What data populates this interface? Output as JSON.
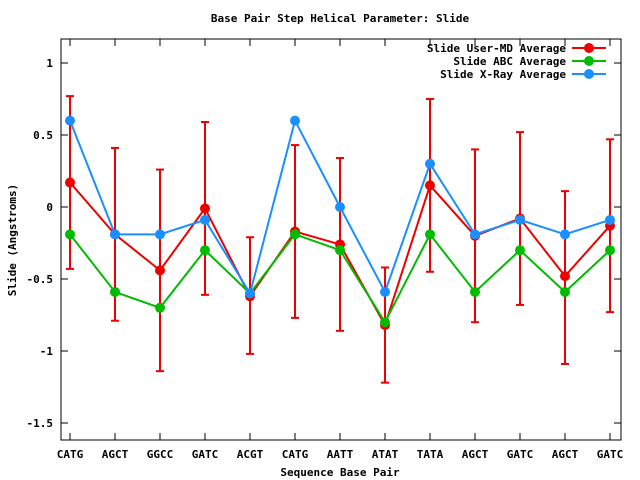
{
  "chart_data": {
    "type": "line",
    "title": "Base Pair Step Helical Parameter: Slide",
    "xlabel": "Sequence Base Pair",
    "ylabel": "Slide (Angstroms)",
    "categories": [
      "CATG",
      "AGCT",
      "GGCC",
      "GATC",
      "ACGT",
      "CATG",
      "AATT",
      "ATAT",
      "TATA",
      "AGCT",
      "GATC",
      "AGCT",
      "GATC"
    ],
    "ylim": [
      -1.6,
      1.15
    ],
    "yticks": [
      -1.5,
      -1,
      -0.5,
      0,
      0.5,
      1
    ],
    "ytick_labels": [
      "-1.5",
      "-1",
      "-0.5",
      "0",
      "0.5",
      "1"
    ],
    "grid": false,
    "legend_position": "top-right",
    "series": [
      {
        "name": "Slide User-MD Average",
        "color": "#ee0000",
        "values": [
          0.17,
          -0.19,
          -0.44,
          -0.01,
          -0.62,
          -0.17,
          -0.26,
          -0.82,
          0.15,
          -0.2,
          -0.08,
          -0.48,
          -0.13
        ],
        "error_low": [
          -0.43,
          -0.79,
          -1.14,
          -0.61,
          -1.02,
          -0.77,
          -0.86,
          -1.22,
          -0.45,
          -0.8,
          -0.68,
          -1.09,
          -0.73
        ],
        "error_high": [
          0.77,
          0.41,
          0.26,
          0.59,
          -0.21,
          0.43,
          0.34,
          -0.42,
          0.75,
          0.4,
          0.52,
          0.11,
          0.47
        ]
      },
      {
        "name": "Slide ABC Average",
        "color": "#00bb00",
        "values": [
          -0.19,
          -0.59,
          -0.7,
          -0.3,
          -0.6,
          -0.19,
          -0.3,
          -0.8,
          -0.19,
          -0.59,
          -0.3,
          -0.59,
          -0.3
        ]
      },
      {
        "name": "Slide X-Ray Average",
        "color": "#1a8fff",
        "values": [
          0.6,
          -0.19,
          -0.19,
          -0.09,
          -0.6,
          0.6,
          0.0,
          -0.59,
          0.3,
          -0.19,
          -0.09,
          -0.19,
          -0.09
        ]
      }
    ]
  }
}
